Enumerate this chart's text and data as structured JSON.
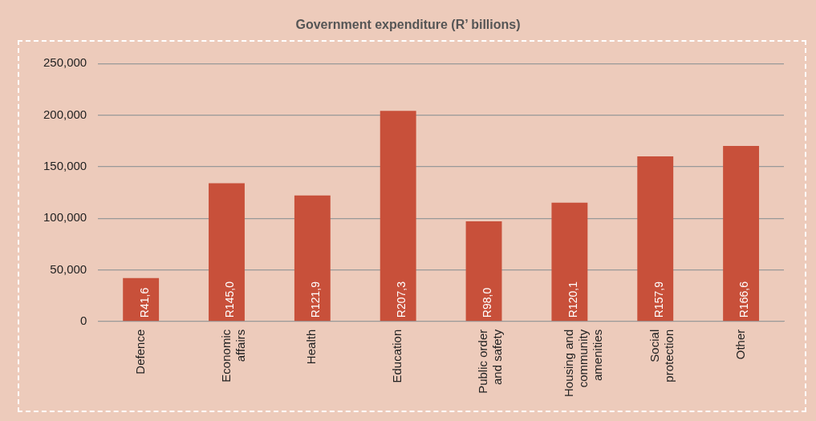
{
  "chart_data": {
    "type": "bar",
    "title": "Government expenditure (R’ billions)",
    "categories": [
      "Defence",
      "Economic affairs",
      "Health",
      "Education",
      "Public order and safety",
      "Housing and community amenities",
      "Social protection",
      "Other"
    ],
    "values": [
      42000,
      134000,
      122000,
      204000,
      97000,
      115000,
      160000,
      170000
    ],
    "value_labels": [
      "R41,6",
      "R145,0",
      "R121,9",
      "R207,3",
      "R98,0",
      "R120,1",
      "R157,9",
      "R166,6"
    ],
    "color": "#c8503a",
    "ylim": [
      0,
      250000
    ],
    "yticks": [
      {
        "value": 0,
        "label": "0"
      },
      {
        "value": 50000,
        "label": "50,000"
      },
      {
        "value": 100000,
        "label": "100,000"
      },
      {
        "value": 150000,
        "label": "150,000"
      },
      {
        "value": 200000,
        "label": "200,000"
      },
      {
        "value": 250000,
        "label": "250,000"
      }
    ],
    "grid": "y",
    "legend": false
  }
}
